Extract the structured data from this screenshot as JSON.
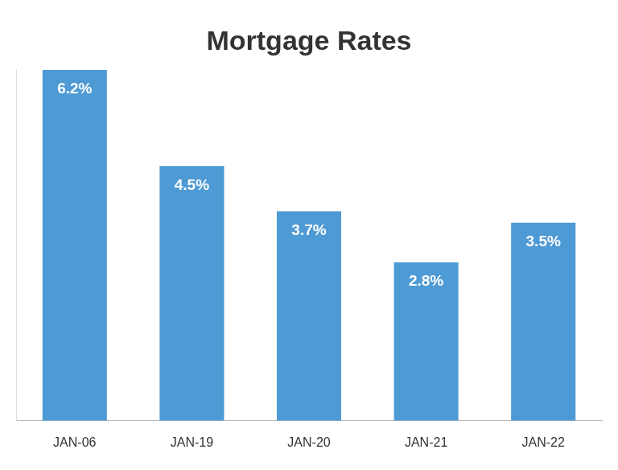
{
  "chart_data": {
    "type": "bar",
    "title": "Mortgage Rates",
    "categories": [
      "JAN-06",
      "JAN-19",
      "JAN-20",
      "JAN-21",
      "JAN-22"
    ],
    "values": [
      6.2,
      4.5,
      3.7,
      2.8,
      3.5
    ],
    "value_labels": [
      "6.2%",
      "4.5%",
      "3.7%",
      "2.8%",
      "3.5%"
    ],
    "color": "#4e9ad4",
    "ylim": [
      0,
      6.2
    ],
    "grid": false,
    "data_labels": true,
    "tick_labels": "x"
  }
}
